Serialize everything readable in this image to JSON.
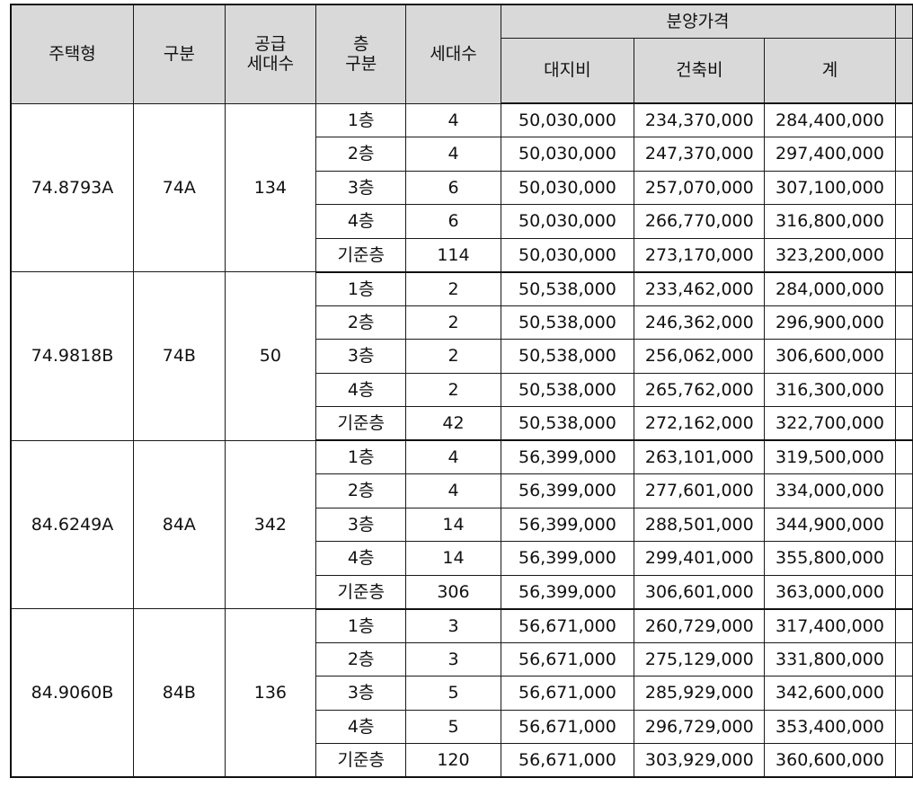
{
  "headers": {
    "type": "주택형",
    "division": "구분",
    "supply_line1": "공급",
    "supply_line2": "세대수",
    "floor_line1": "층",
    "floor_line2": "구분",
    "households": "세대수",
    "price_group": "분양가격",
    "land": "대지비",
    "building": "건축비",
    "total": "계"
  },
  "groups": [
    {
      "type": "74.8793A",
      "division": "74A",
      "supply": "134",
      "rows": [
        {
          "floor": "1층",
          "units": "4",
          "land": "50,030,000",
          "building": "234,370,000",
          "total": "284,400,000"
        },
        {
          "floor": "2층",
          "units": "4",
          "land": "50,030,000",
          "building": "247,370,000",
          "total": "297,400,000"
        },
        {
          "floor": "3층",
          "units": "6",
          "land": "50,030,000",
          "building": "257,070,000",
          "total": "307,100,000"
        },
        {
          "floor": "4층",
          "units": "6",
          "land": "50,030,000",
          "building": "266,770,000",
          "total": "316,800,000"
        },
        {
          "floor": "기준층",
          "units": "114",
          "land": "50,030,000",
          "building": "273,170,000",
          "total": "323,200,000"
        }
      ]
    },
    {
      "type": "74.9818B",
      "division": "74B",
      "supply": "50",
      "rows": [
        {
          "floor": "1층",
          "units": "2",
          "land": "50,538,000",
          "building": "233,462,000",
          "total": "284,000,000"
        },
        {
          "floor": "2층",
          "units": "2",
          "land": "50,538,000",
          "building": "246,362,000",
          "total": "296,900,000"
        },
        {
          "floor": "3층",
          "units": "2",
          "land": "50,538,000",
          "building": "256,062,000",
          "total": "306,600,000"
        },
        {
          "floor": "4층",
          "units": "2",
          "land": "50,538,000",
          "building": "265,762,000",
          "total": "316,300,000"
        },
        {
          "floor": "기준층",
          "units": "42",
          "land": "50,538,000",
          "building": "272,162,000",
          "total": "322,700,000"
        }
      ]
    },
    {
      "type": "84.6249A",
      "division": "84A",
      "supply": "342",
      "rows": [
        {
          "floor": "1층",
          "units": "4",
          "land": "56,399,000",
          "building": "263,101,000",
          "total": "319,500,000"
        },
        {
          "floor": "2층",
          "units": "4",
          "land": "56,399,000",
          "building": "277,601,000",
          "total": "334,000,000"
        },
        {
          "floor": "3층",
          "units": "14",
          "land": "56,399,000",
          "building": "288,501,000",
          "total": "344,900,000"
        },
        {
          "floor": "4층",
          "units": "14",
          "land": "56,399,000",
          "building": "299,401,000",
          "total": "355,800,000"
        },
        {
          "floor": "기준층",
          "units": "306",
          "land": "56,399,000",
          "building": "306,601,000",
          "total": "363,000,000"
        }
      ]
    },
    {
      "type": "84.9060B",
      "division": "84B",
      "supply": "136",
      "rows": [
        {
          "floor": "1층",
          "units": "3",
          "land": "56,671,000",
          "building": "260,729,000",
          "total": "317,400,000"
        },
        {
          "floor": "2층",
          "units": "3",
          "land": "56,671,000",
          "building": "275,129,000",
          "total": "331,800,000"
        },
        {
          "floor": "3층",
          "units": "5",
          "land": "56,671,000",
          "building": "285,929,000",
          "total": "342,600,000"
        },
        {
          "floor": "4층",
          "units": "5",
          "land": "56,671,000",
          "building": "296,729,000",
          "total": "353,400,000"
        },
        {
          "floor": "기준층",
          "units": "120",
          "land": "56,671,000",
          "building": "303,929,000",
          "total": "360,600,000"
        }
      ]
    }
  ]
}
